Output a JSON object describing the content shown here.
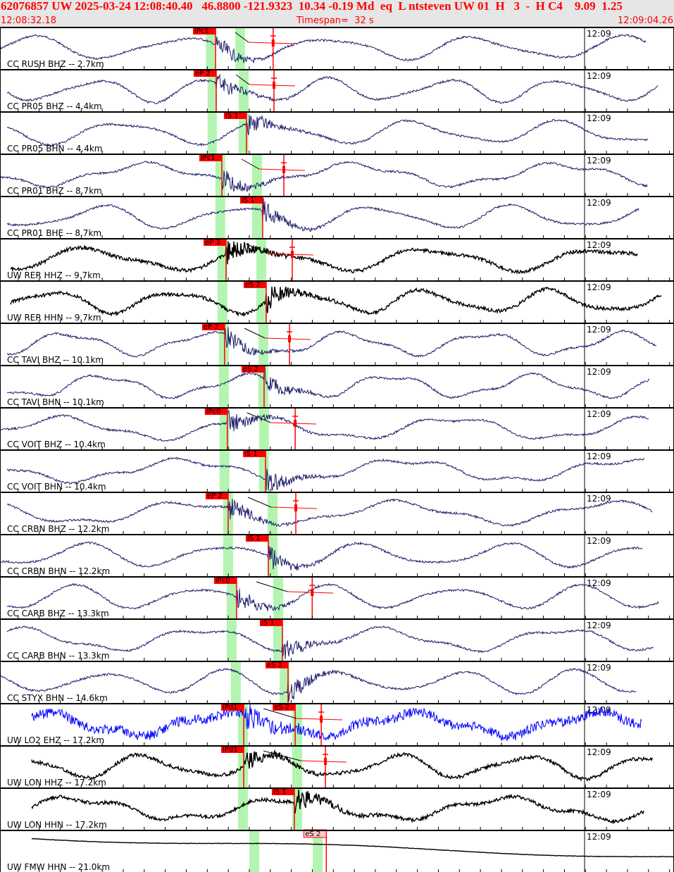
{
  "header": {
    "title": "62076857 UW 2025-03-24 12:08:40.40   46.8800 -121.9323  10.34 -0.19 Md  eq  L ntsteven UW 01  H   3  -  H C4    9.09  1.25",
    "start_time": "12:08:32.18",
    "timespan": "Timespan=  32 s",
    "end_time": "12:09:04.26"
  },
  "minute_label": "12:09",
  "colors": {
    "trace": "#1c1c6b",
    "trace_black": "#000000",
    "trace_blue": "#0000ff",
    "pick": "#ff0000",
    "window": "#b3f5b0",
    "header_bg": "#e6e6e6"
  },
  "channels": [
    {
      "label": "CC RUSH BHZ -- 2.7km",
      "trace": "navy",
      "picks": [
        {
          "text": "iPc1",
          "t": 10.26
        }
      ],
      "coda_t": 13.0,
      "windows_t": [
        [
          9.8,
          10.26
        ],
        [
          11.2,
          11.66
        ]
      ]
    },
    {
      "label": "CC PR05 BHZ -- 4.4km",
      "trace": "navy",
      "picks": [
        {
          "text": "eP 2",
          "t": 10.29
        }
      ],
      "coda_t": 13.04,
      "windows_t": [
        [
          9.88,
          10.32
        ],
        [
          11.36,
          11.83
        ]
      ]
    },
    {
      "label": "CC PR05 BHN -- 4.4km",
      "trace": "navy",
      "picks": [
        {
          "text": "iS 1",
          "t": 11.73
        }
      ],
      "windows_t": [
        [
          9.88,
          10.32
        ],
        [
          11.36,
          11.83
        ]
      ]
    },
    {
      "label": "CC PR01 BHZ -- 8.7km",
      "trace": "navy",
      "picks": [
        {
          "text": "iPc1",
          "t": 10.56
        }
      ],
      "coda_t": 13.51,
      "windows_t": [
        [
          10.25,
          10.72
        ],
        [
          12.0,
          12.47
        ]
      ]
    },
    {
      "label": "CC PR01 BHE -- 8.7km",
      "trace": "navy",
      "picks": [
        {
          "text": "iS 1",
          "t": 12.5
        }
      ],
      "windows_t": [
        [
          10.25,
          10.72
        ],
        [
          12.0,
          12.47
        ]
      ]
    },
    {
      "label": "UW RER HHZ -- 9.7km",
      "trace": "black",
      "picks": [
        {
          "text": "eP 3",
          "t": 10.76
        }
      ],
      "coda_t": 13.91,
      "windows_t": [
        [
          10.35,
          10.82
        ],
        [
          12.2,
          12.67
        ]
      ]
    },
    {
      "label": "UW RER HHN -- 9.7km",
      "trace": "black",
      "picks": [
        {
          "text": "eS 2",
          "t": 12.67
        }
      ],
      "windows_t": [
        [
          10.35,
          10.82
        ],
        [
          12.2,
          12.67
        ]
      ]
    },
    {
      "label": "CC TAVI BHZ -- 10.1km",
      "trace": "navy",
      "picks": [
        {
          "text": "eP 2",
          "t": 10.69
        }
      ],
      "coda_t": 13.78,
      "windows_t": [
        [
          10.42,
          10.89
        ],
        [
          12.3,
          12.77
        ]
      ]
    },
    {
      "label": "CC TAVI BHN -- 10.1km",
      "trace": "navy",
      "picks": [
        {
          "text": "eS 2",
          "t": 12.57
        }
      ],
      "windows_t": [
        [
          10.42,
          10.89
        ],
        [
          12.3,
          12.77
        ]
      ]
    },
    {
      "label": "CC VOIT BHZ -- 10.4km",
      "trace": "navy",
      "picks": [
        {
          "text": "iPc0",
          "t": 10.82
        }
      ],
      "coda_t": 14.05,
      "windows_t": [
        [
          10.45,
          10.92
        ],
        [
          12.33,
          12.8
        ]
      ]
    },
    {
      "label": "CC VOIT BHN -- 10.4km",
      "trace": "navy",
      "picks": [
        {
          "text": "iS 1",
          "t": 12.64
        }
      ],
      "windows_t": [
        [
          10.45,
          10.92
        ],
        [
          12.33,
          12.8
        ]
      ]
    },
    {
      "label": "CC CRBN BHZ -- 12.2km",
      "trace": "navy",
      "picks": [
        {
          "text": "eP 2",
          "t": 10.86
        }
      ],
      "coda_t": 14.08,
      "windows_t": [
        [
          10.62,
          11.09
        ],
        [
          12.74,
          13.21
        ]
      ]
    },
    {
      "label": "CC CRBN BHN -- 12.2km",
      "trace": "navy",
      "picks": [
        {
          "text": "iS 1",
          "t": 12.77
        }
      ],
      "windows_t": [
        [
          10.62,
          11.09
        ],
        [
          12.74,
          13.21
        ]
      ]
    },
    {
      "label": "CC CARB BHZ -- 13.3km",
      "trace": "navy",
      "picks": [
        {
          "text": "iPc0",
          "t": 11.26
        }
      ],
      "coda_t": 14.86,
      "windows_t": [
        [
          10.79,
          11.26
        ],
        [
          13.0,
          13.48
        ]
      ]
    },
    {
      "label": "CC CARB BHN -- 13.3km",
      "trace": "navy",
      "picks": [
        {
          "text": "iS 1",
          "t": 13.44
        }
      ],
      "windows_t": [
        [
          10.79,
          11.26
        ],
        [
          13.0,
          13.48
        ]
      ]
    },
    {
      "label": "CC STYX BHN -- 14.6km",
      "trace": "navy",
      "picks": [
        {
          "text": "eS 2",
          "t": 13.71
        }
      ],
      "windows_t": [
        [
          10.99,
          11.46
        ],
        [
          13.31,
          13.78
        ]
      ]
    },
    {
      "label": "UW LO2 EHZ -- 17.2km",
      "trace": "blue",
      "picks": [
        {
          "text": "iPd1",
          "t": 11.6
        },
        {
          "text": "eS 2",
          "t": 14.05
        }
      ],
      "coda_t": 15.29,
      "windows_t": [
        [
          11.33,
          11.8
        ],
        [
          13.91,
          14.38
        ]
      ]
    },
    {
      "label": "UW LON HHZ -- 17.2km",
      "trace": "black",
      "picks": [
        {
          "text": "iPd1",
          "t": 11.6
        }
      ],
      "coda_t": 15.49,
      "windows_t": [
        [
          11.33,
          11.8
        ],
        [
          13.91,
          14.38
        ]
      ]
    },
    {
      "label": "UW LON HHN -- 17.2km",
      "trace": "black",
      "picks": [
        {
          "text": "iS 1",
          "t": 14.01
        }
      ],
      "windows_t": [
        [
          11.33,
          11.8
        ],
        [
          13.91,
          14.38
        ]
      ]
    },
    {
      "label": "UW FMW HHN -- 21.0km",
      "trace": "black",
      "picks": [
        {
          "text": "eS 2",
          "t": 15.53,
          "faded": true
        }
      ],
      "windows_t": [
        [
          11.87,
          12.34
        ],
        [
          14.89,
          15.36
        ]
      ]
    }
  ]
}
